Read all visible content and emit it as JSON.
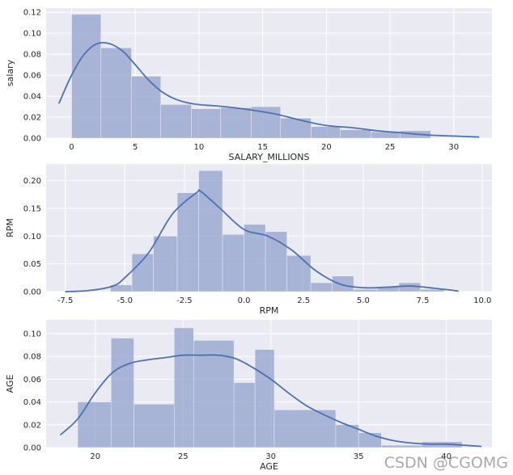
{
  "chart_data": [
    {
      "type": "histogram",
      "xlabel": "SALARY_MILLIONS",
      "ylabel": "salary",
      "xlim": [
        -2,
        33
      ],
      "ylim": [
        0,
        0.124
      ],
      "xticks": [
        0,
        5,
        10,
        15,
        20,
        25,
        30
      ],
      "yticks": [
        0.0,
        0.02,
        0.04,
        0.06,
        0.08,
        0.1,
        0.12
      ],
      "ytick_decimals": 2,
      "grid": true,
      "bar_color": "#8da0cb",
      "line_color": "#4c72b0",
      "bins": [
        {
          "x0": 0,
          "x1": 2.3,
          "h": 0.118
        },
        {
          "x0": 2.3,
          "x1": 4.7,
          "h": 0.086
        },
        {
          "x0": 4.7,
          "x1": 7.0,
          "h": 0.059
        },
        {
          "x0": 7.0,
          "x1": 9.4,
          "h": 0.032
        },
        {
          "x0": 9.4,
          "x1": 11.7,
          "h": 0.028
        },
        {
          "x0": 11.7,
          "x1": 14.1,
          "h": 0.029
        },
        {
          "x0": 14.1,
          "x1": 16.4,
          "h": 0.03
        },
        {
          "x0": 16.4,
          "x1": 18.8,
          "h": 0.019
        },
        {
          "x0": 18.8,
          "x1": 21.1,
          "h": 0.011
        },
        {
          "x0": 21.1,
          "x1": 23.5,
          "h": 0.008
        },
        {
          "x0": 23.5,
          "x1": 25.8,
          "h": 0.006
        },
        {
          "x0": 25.8,
          "x1": 28.2,
          "h": 0.007
        }
      ],
      "kde": [
        [
          -1,
          0.033
        ],
        [
          0,
          0.06
        ],
        [
          1,
          0.08
        ],
        [
          2,
          0.09
        ],
        [
          3,
          0.09
        ],
        [
          4,
          0.083
        ],
        [
          5,
          0.07
        ],
        [
          6,
          0.056
        ],
        [
          7,
          0.045
        ],
        [
          8,
          0.038
        ],
        [
          9,
          0.034
        ],
        [
          10,
          0.032
        ],
        [
          12,
          0.03
        ],
        [
          14,
          0.027
        ],
        [
          16,
          0.023
        ],
        [
          18,
          0.017
        ],
        [
          20,
          0.012
        ],
        [
          22,
          0.01
        ],
        [
          24,
          0.007
        ],
        [
          26,
          0.005
        ],
        [
          28,
          0.003
        ],
        [
          30,
          0.002
        ],
        [
          32,
          0.001
        ]
      ]
    },
    {
      "type": "histogram",
      "xlabel": "RPM",
      "ylabel": "RPM",
      "xlim": [
        -8.3,
        10.4
      ],
      "ylim": [
        0,
        0.23
      ],
      "xticks": [
        -7.5,
        -5.0,
        -2.5,
        0.0,
        2.5,
        5.0,
        7.5,
        10.0
      ],
      "yticks": [
        0.0,
        0.05,
        0.1,
        0.15,
        0.2
      ],
      "ytick_decimals": 2,
      "grid": true,
      "bar_color": "#8da0cb",
      "line_color": "#4c72b0",
      "bins": [
        {
          "x0": -5.6,
          "x1": -4.7,
          "h": 0.012
        },
        {
          "x0": -4.7,
          "x1": -3.8,
          "h": 0.068
        },
        {
          "x0": -3.8,
          "x1": -2.8,
          "h": 0.1
        },
        {
          "x0": -2.8,
          "x1": -1.9,
          "h": 0.178
        },
        {
          "x0": -1.9,
          "x1": -0.9,
          "h": 0.218
        },
        {
          "x0": -0.9,
          "x1": 0.0,
          "h": 0.103
        },
        {
          "x0": 0.0,
          "x1": 0.9,
          "h": 0.121
        },
        {
          "x0": 0.9,
          "x1": 1.8,
          "h": 0.108
        },
        {
          "x0": 1.8,
          "x1": 2.8,
          "h": 0.065
        },
        {
          "x0": 2.8,
          "x1": 3.7,
          "h": 0.016
        },
        {
          "x0": 3.7,
          "x1": 4.6,
          "h": 0.028
        },
        {
          "x0": 4.6,
          "x1": 5.6,
          "h": 0.004
        },
        {
          "x0": 5.6,
          "x1": 6.5,
          "h": 0.009
        },
        {
          "x0": 6.5,
          "x1": 7.4,
          "h": 0.016
        },
        {
          "x0": 7.4,
          "x1": 8.4,
          "h": 0.004
        }
      ],
      "kde": [
        [
          -7.5,
          0.0
        ],
        [
          -6.5,
          0.002
        ],
        [
          -5.5,
          0.01
        ],
        [
          -5.0,
          0.025
        ],
        [
          -4.0,
          0.07
        ],
        [
          -3.0,
          0.14
        ],
        [
          -2.0,
          0.178
        ],
        [
          -1.8,
          0.18
        ],
        [
          -1.0,
          0.15
        ],
        [
          0.0,
          0.112
        ],
        [
          1.0,
          0.1
        ],
        [
          2.0,
          0.075
        ],
        [
          3.0,
          0.038
        ],
        [
          4.0,
          0.014
        ],
        [
          5.0,
          0.007
        ],
        [
          6.0,
          0.008
        ],
        [
          7.0,
          0.01
        ],
        [
          8.0,
          0.006
        ],
        [
          9.0,
          0.001
        ]
      ]
    },
    {
      "type": "histogram",
      "xlabel": "AGE",
      "ylabel": "AGE",
      "xlim": [
        17.2,
        42.6
      ],
      "ylim": [
        0,
        0.112
      ],
      "xticks": [
        20,
        25,
        30,
        35,
        40
      ],
      "yticks": [
        0.0,
        0.02,
        0.04,
        0.06,
        0.08,
        0.1
      ],
      "ytick_decimals": 2,
      "grid": true,
      "bar_color": "#8da0cb",
      "line_color": "#4c72b0",
      "bins": [
        {
          "x0": 19.0,
          "x1": 20.9,
          "h": 0.04
        },
        {
          "x0": 20.9,
          "x1": 22.2,
          "h": 0.096
        },
        {
          "x0": 22.2,
          "x1": 24.5,
          "h": 0.038
        },
        {
          "x0": 24.5,
          "x1": 25.6,
          "h": 0.105
        },
        {
          "x0": 25.6,
          "x1": 27.9,
          "h": 0.094
        },
        {
          "x0": 27.9,
          "x1": 29.1,
          "h": 0.057
        },
        {
          "x0": 29.1,
          "x1": 30.2,
          "h": 0.086
        },
        {
          "x0": 30.2,
          "x1": 33.7,
          "h": 0.033
        },
        {
          "x0": 33.7,
          "x1": 35.0,
          "h": 0.02
        },
        {
          "x0": 35.0,
          "x1": 36.3,
          "h": 0.013
        },
        {
          "x0": 36.3,
          "x1": 38.6,
          "h": 0.002
        },
        {
          "x0": 38.6,
          "x1": 40.9,
          "h": 0.005
        }
      ],
      "kde": [
        [
          18,
          0.011
        ],
        [
          19,
          0.025
        ],
        [
          20,
          0.048
        ],
        [
          21,
          0.066
        ],
        [
          22,
          0.074
        ],
        [
          23,
          0.077
        ],
        [
          24,
          0.079
        ],
        [
          25,
          0.081
        ],
        [
          26,
          0.081
        ],
        [
          27,
          0.081
        ],
        [
          28,
          0.078
        ],
        [
          29,
          0.07
        ],
        [
          30,
          0.06
        ],
        [
          31,
          0.048
        ],
        [
          32,
          0.037
        ],
        [
          33,
          0.029
        ],
        [
          34,
          0.022
        ],
        [
          35,
          0.016
        ],
        [
          36,
          0.01
        ],
        [
          37,
          0.006
        ],
        [
          38,
          0.004
        ],
        [
          39,
          0.003
        ],
        [
          40,
          0.003
        ],
        [
          41,
          0.002
        ],
        [
          42,
          0.001
        ]
      ]
    }
  ],
  "watermark": "CSDN @CGOMG"
}
